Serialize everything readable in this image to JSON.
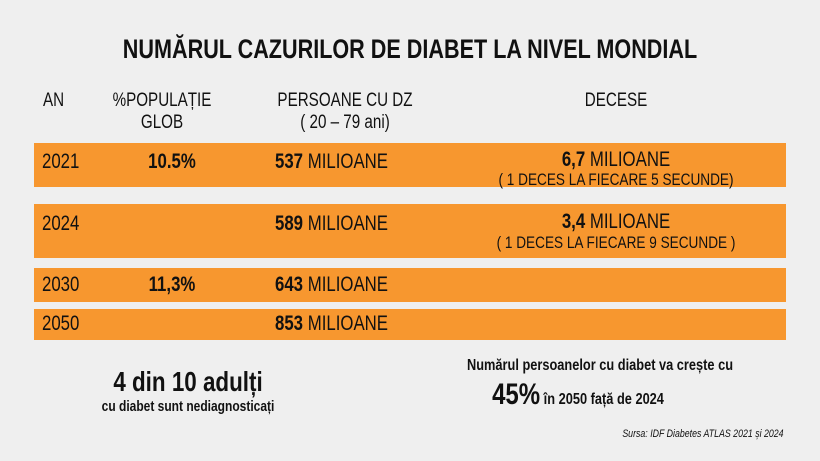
{
  "title": "NUMĂRUL CAZURILOR DE DIABET LA NIVEL MONDIAL",
  "headers": {
    "an": "AN",
    "pop_line1": "%POPULAȚIE",
    "pop_line2": "GLOB",
    "pers_line1": "PERSOANE CU DZ",
    "pers_line2": "( 20 – 79 ani)",
    "decese": "DECESE"
  },
  "row_color": "#f7972f",
  "rows": [
    {
      "year": "2021",
      "pop": "10.5%",
      "pers_num": "537",
      "pers_unit": " MILIOANE",
      "dec_num": "6,7",
      "dec_unit": " MILIOANE",
      "dec_note": "( 1 DECES LA FIECARE 5 SECUNDE)"
    },
    {
      "year": "2024",
      "pop": "",
      "pers_num": "589",
      "pers_unit": " MILIOANE",
      "dec_num": "3,4",
      "dec_unit": " MILIOANE",
      "dec_note": "( 1 DECES LA FIECARE 9 SECUNDE )"
    },
    {
      "year": "2030",
      "pop": "11,3%",
      "pers_num": "643",
      "pers_unit": " MILIOANE"
    },
    {
      "year": "2050",
      "pop": "",
      "pers_num": "853",
      "pers_unit": " MILIOANE"
    }
  ],
  "left_note": {
    "main": "4 din 10 adulți",
    "sub": "cu diabet sunt nediagnosticați"
  },
  "right_note": {
    "line1": "Numărul persoanelor cu diabet va crește cu",
    "pct": "45%",
    "rest": " în 2050  față de 2024"
  },
  "source": "Sursa: IDF Diabetes  ATLAS  2021 și 2024"
}
